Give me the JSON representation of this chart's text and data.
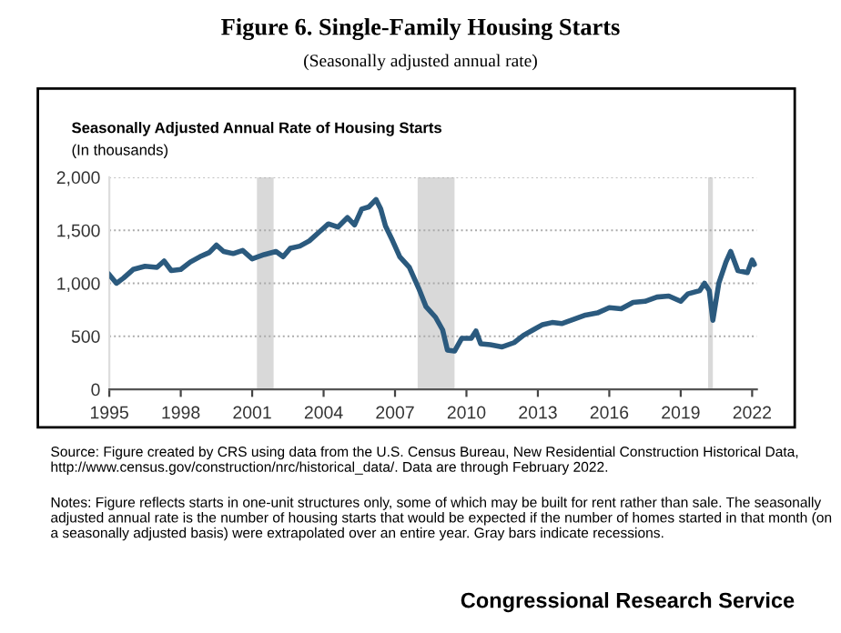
{
  "chart_data": {
    "type": "line",
    "title": "Figure 6. Single-Family Housing Starts",
    "subtitle": "(Seasonally adjusted annual rate)",
    "ylabel": "Seasonally Adjusted Annual Rate of Housing Starts",
    "annotations": [
      "(In thousands)",
      "Source: Figure created by CRS using data from the U.S. Census Bureau, New Residential Construction Historical Data, http://www.census.gov/construction/nrc/historical_data/. Data are through February 2022.",
      "Notes: Figure reflects starts in one-unit structures only, some of which may be built for rent rather than sale. The seasonally adjusted annual rate is the number of housing starts that would be expected if the number of homes started in that month (on a seasonally adjusted basis) were extrapolated over an entire year. Gray bars indicate recessions.",
      "Congressional Research Service"
    ],
    "x": [
      1995.0,
      1995.3,
      1995.6,
      1996.0,
      1996.5,
      1997.0,
      1997.3,
      1997.6,
      1998.0,
      1998.4,
      1998.8,
      1999.2,
      1999.5,
      1999.8,
      2000.2,
      2000.6,
      2001.0,
      2001.5,
      2002.0,
      2002.3,
      2002.6,
      2003.0,
      2003.4,
      2003.8,
      2004.2,
      2004.6,
      2005.0,
      2005.3,
      2005.6,
      2005.9,
      2006.2,
      2006.4,
      2006.6,
      2006.9,
      2007.2,
      2007.6,
      2008.0,
      2008.3,
      2008.7,
      2009.0,
      2009.2,
      2009.5,
      2009.8,
      2010.2,
      2010.4,
      2010.6,
      2011.0,
      2011.5,
      2012.0,
      2012.4,
      2012.8,
      2013.2,
      2013.6,
      2014.0,
      2014.5,
      2015.0,
      2015.5,
      2016.0,
      2016.5,
      2017.0,
      2017.5,
      2018.0,
      2018.5,
      2019.0,
      2019.3,
      2019.8,
      2020.0,
      2020.2,
      2020.35,
      2020.6,
      2020.9,
      2021.1,
      2021.4,
      2021.8,
      2022.0,
      2022.1
    ],
    "series": [
      {
        "color": "#2b5a7e",
        "values": [
          1080,
          1000,
          1050,
          1130,
          1160,
          1150,
          1210,
          1120,
          1130,
          1200,
          1250,
          1290,
          1360,
          1300,
          1280,
          1310,
          1230,
          1270,
          1300,
          1250,
          1330,
          1350,
          1400,
          1480,
          1560,
          1530,
          1620,
          1550,
          1700,
          1720,
          1790,
          1700,
          1540,
          1400,
          1250,
          1150,
          950,
          780,
          680,
          560,
          370,
          360,
          480,
          480,
          550,
          430,
          420,
          400,
          440,
          510,
          560,
          610,
          630,
          620,
          660,
          700,
          720,
          770,
          760,
          820,
          830,
          870,
          880,
          830,
          900,
          930,
          1000,
          930,
          650,
          1000,
          1200,
          1300,
          1120,
          1100,
          1220,
          1180
        ]
      }
    ],
    "xlim": [
      1995,
      2022.2
    ],
    "xticks": [
      1995,
      1998,
      2001,
      2004,
      2007,
      2010,
      2013,
      2016,
      2019,
      2022
    ],
    "ylim": [
      0,
      2000
    ],
    "yticks": [
      {
        "value": 0,
        "label": "0"
      },
      {
        "value": 500,
        "label": "500"
      },
      {
        "value": 1000,
        "label": "1,000"
      },
      {
        "value": 1500,
        "label": "1,500"
      },
      {
        "value": 2000,
        "label": "2,000"
      }
    ],
    "bands": [
      {
        "axis": "x",
        "from": 2001.2,
        "to": 2001.9,
        "color": "#d9d9d9"
      },
      {
        "axis": "x",
        "from": 2007.95,
        "to": 2009.5,
        "color": "#d9d9d9"
      },
      {
        "axis": "x",
        "from": 2020.15,
        "to": 2020.35,
        "color": "#d9d9d9"
      }
    ],
    "grid": "y",
    "legend": false,
    "marker": "none",
    "line_style": "solid"
  }
}
